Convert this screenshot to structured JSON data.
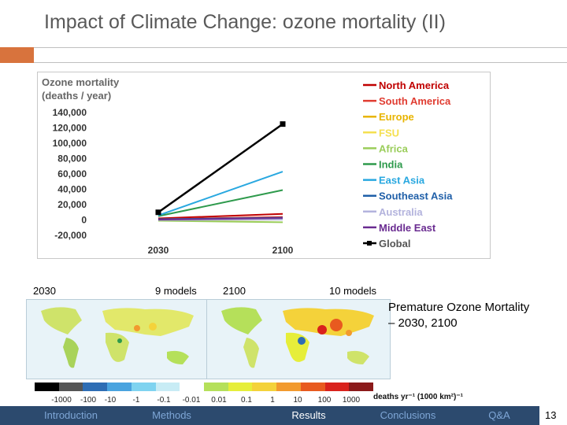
{
  "title": "Impact of Climate Change: ozone mortality (II)",
  "chart_data": {
    "type": "line",
    "ylabel_line1": "Ozone mortality",
    "ylabel_line2": "(deaths / year)",
    "categories": [
      "2030",
      "2100"
    ],
    "y_ticks": [
      "140,000",
      "120,000",
      "100,000",
      "80,000",
      "60,000",
      "40,000",
      "20,000",
      "0",
      "-20,000"
    ],
    "ylim": [
      -20000,
      140000
    ],
    "legend_position": "right",
    "series": [
      {
        "name": "North America",
        "color": "#c00000",
        "values": [
          2000,
          8000
        ]
      },
      {
        "name": "South America",
        "color": "#e03c31",
        "values": [
          1000,
          4000
        ]
      },
      {
        "name": "Europe",
        "color": "#e8b400",
        "values": [
          0,
          1500
        ]
      },
      {
        "name": "FSU",
        "color": "#f5e050",
        "values": [
          -500,
          500
        ]
      },
      {
        "name": "Africa",
        "color": "#9acd5a",
        "values": [
          -1000,
          -3000
        ]
      },
      {
        "name": "India",
        "color": "#2e9a4c",
        "values": [
          5000,
          39000
        ]
      },
      {
        "name": "East Asia",
        "color": "#29a8e0",
        "values": [
          6000,
          63000
        ]
      },
      {
        "name": "Southeast Asia",
        "color": "#1f5fa8",
        "values": [
          1000,
          3000
        ]
      },
      {
        "name": "Australia",
        "color": "#b3b3dd",
        "values": [
          0,
          500
        ]
      },
      {
        "name": "Middle East",
        "color": "#6a2c91",
        "values": [
          500,
          2500
        ]
      },
      {
        "name": "Global",
        "color": "#000000",
        "values": [
          10000,
          125000
        ]
      }
    ]
  },
  "maps": {
    "label_2030": "2030",
    "models_2030": "9 models",
    "label_2100": "2100",
    "models_2100": "10 models"
  },
  "caption": "Premature Ozone Mortality – 2030, 2100",
  "colorbar": {
    "colors": [
      "#000000",
      "#555555",
      "#2e6db4",
      "#4aa3df",
      "#7fd3f0",
      "#c8ecf5",
      "#ffffff",
      "#b5e05a",
      "#e6ee3a",
      "#f4d23a",
      "#f29a2e",
      "#e85a1f",
      "#d9221c",
      "#8b1a1a"
    ],
    "labels": [
      "-1000",
      "-100",
      "-10",
      "-1",
      "-0.1",
      "-0.01",
      "0.01",
      "0.1",
      "1",
      "10",
      "100",
      "1000"
    ],
    "units": "deaths yr⁻¹ (1000 km²)⁻¹"
  },
  "nav": {
    "items": [
      "Introduction",
      "Methods",
      "Results",
      "Conclusions",
      "Q&A"
    ],
    "active_index": 2,
    "page_number": "13"
  }
}
